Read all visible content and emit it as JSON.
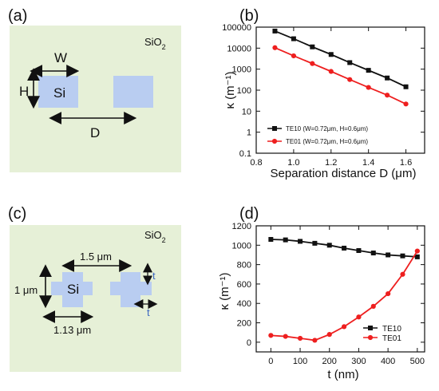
{
  "panels": {
    "a": {
      "letter": "(a)",
      "material_bg": "SiO",
      "material_bg_sub": "2",
      "w_label": "W",
      "h_label": "H",
      "core_label": "Si",
      "d_label": "D"
    },
    "b": {
      "letter": "(b)"
    },
    "c": {
      "letter": "(c)",
      "material_bg": "SiO",
      "material_bg_sub": "2",
      "pitch_label": "1.5 μm",
      "height_label": "1 μm",
      "core_label": "Si",
      "width_label": "1.13 μm",
      "t_vertical_label": "t",
      "t_horizontal_label": "t"
    },
    "d": {
      "letter": "(d)"
    }
  },
  "colors": {
    "cladding": "#e6f0d7",
    "core": "#b9cdf1",
    "black_series": "#111111",
    "red_series": "#ee1f1f",
    "blue_text": "#3d68c2"
  },
  "chart_data": [
    {
      "type": "line",
      "panel": "b",
      "x": [
        0.9,
        1.0,
        1.1,
        1.2,
        1.3,
        1.4,
        1.5,
        1.6
      ],
      "series": [
        {
          "name": "TE10 (W=0.72μm, H=0.6μm)",
          "color": "#111111",
          "values": [
            65000,
            28000,
            11500,
            5000,
            2050,
            880,
            380,
            145
          ]
        },
        {
          "name": "TE01 (W=0.72μm, H=0.6μm)",
          "color": "#ee1f1f",
          "values": [
            10500,
            4300,
            1850,
            780,
            320,
            135,
            58,
            22
          ]
        }
      ],
      "xlabel": "Separation distance D (μm)",
      "ylabel": "κ (m⁻¹)",
      "xlim": [
        0.8,
        1.7
      ],
      "ylim": [
        0.1,
        100000
      ],
      "yscale": "log",
      "xticks": [
        "0.8",
        "1.0",
        "1.2",
        "1.4",
        "1.6"
      ],
      "yticks": [
        "0.1",
        "1",
        "10",
        "100",
        "1000",
        "10000",
        "100000"
      ],
      "legend": "bottom-left"
    },
    {
      "type": "line",
      "panel": "d",
      "x": [
        0,
        50,
        100,
        150,
        200,
        250,
        300,
        350,
        400,
        450,
        500
      ],
      "series": [
        {
          "name": "TE10",
          "color": "#111111",
          "values": [
            1060,
            1055,
            1040,
            1020,
            1000,
            970,
            945,
            920,
            900,
            890,
            880
          ]
        },
        {
          "name": "TE01",
          "color": "#ee1f1f",
          "values": [
            70,
            60,
            40,
            20,
            80,
            160,
            260,
            370,
            500,
            700,
            940
          ]
        }
      ],
      "xlabel": "t (nm)",
      "ylabel": "κ (m⁻¹)",
      "xlim": [
        -50,
        525
      ],
      "ylim": [
        -100,
        1200
      ],
      "xticks": [
        "0",
        "100",
        "200",
        "300",
        "400",
        "500"
      ],
      "yticks": [
        "0",
        "200",
        "400",
        "600",
        "800",
        "1000",
        "1200"
      ],
      "legend": "bottom-right"
    }
  ]
}
